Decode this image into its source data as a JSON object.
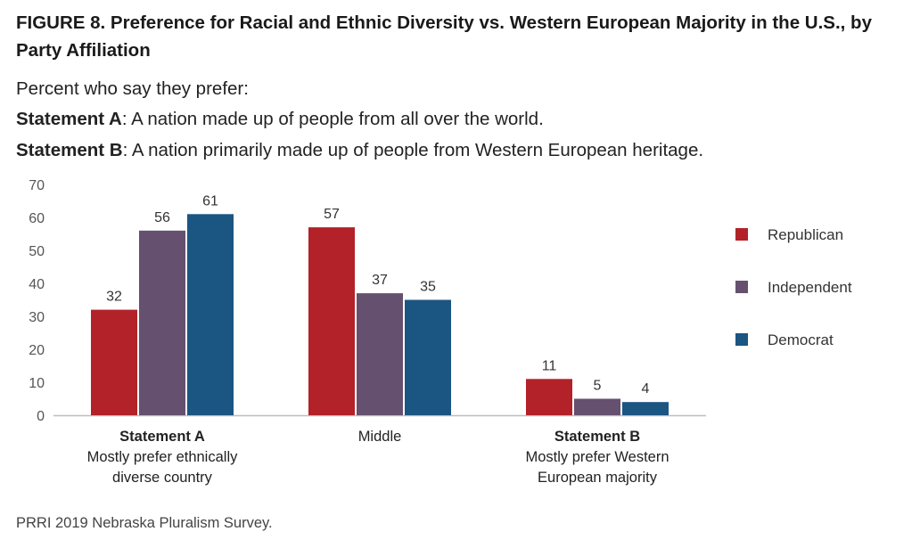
{
  "title": "FIGURE 8. Preference for Racial and Ethnic Diversity vs. Western European Majority in the U.S., by Party Affiliation",
  "subtitle": "Percent who say they prefer:",
  "statement_a": {
    "label": "Statement A",
    "text": ": A nation made up of people from all over the world."
  },
  "statement_b": {
    "label": "Statement B",
    "text": ": A nation primarily made up of people from Western European heritage."
  },
  "source": "PRRI 2019 Nebraska Pluralism Survey.",
  "chart_data": {
    "type": "bar",
    "ylim": [
      0,
      70
    ],
    "yticks": [
      0,
      10,
      20,
      30,
      40,
      50,
      60,
      70
    ],
    "grid": false,
    "legend": "right",
    "categories": [
      {
        "bold": "Statement A",
        "lines": [
          "Mostly prefer ethnically",
          "diverse country"
        ]
      },
      {
        "bold": "",
        "lines": [
          "Middle"
        ]
      },
      {
        "bold": "Statement B",
        "lines": [
          "Mostly prefer Western",
          "European majority"
        ]
      }
    ],
    "series": [
      {
        "name": "Republican",
        "color": "#b22228",
        "values": [
          32,
          57,
          11
        ]
      },
      {
        "name": "Independent",
        "color": "#66506f",
        "values": [
          56,
          37,
          5
        ]
      },
      {
        "name": "Democrat",
        "color": "#1b5582",
        "values": [
          61,
          35,
          4
        ]
      }
    ]
  }
}
